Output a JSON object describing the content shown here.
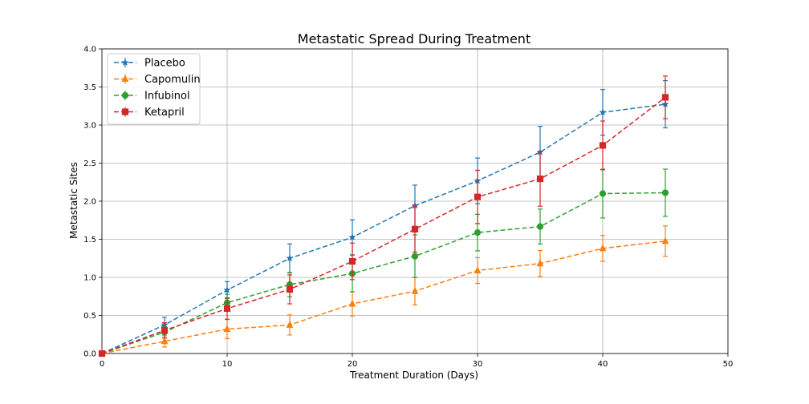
{
  "chart_data": {
    "type": "line",
    "title": "Metastatic Spread During Treatment",
    "xlabel": "Treatment Duration (Days)",
    "ylabel": "Metastatic Sites",
    "xlim": [
      0,
      50
    ],
    "ylim": [
      0,
      4.0
    ],
    "xticks": [
      0,
      10,
      20,
      30,
      40,
      50
    ],
    "yticks": [
      0.0,
      0.5,
      1.0,
      1.5,
      2.0,
      2.5,
      3.0,
      3.5,
      4.0
    ],
    "xtick_labels": [
      "0",
      "10",
      "20",
      "30",
      "40",
      "50"
    ],
    "ytick_labels": [
      "0.0",
      "0.5",
      "1.0",
      "1.5",
      "2.0",
      "2.5",
      "3.0",
      "3.5",
      "4.0"
    ],
    "grid": true,
    "legend_position": "top-left",
    "x": [
      0,
      5,
      10,
      15,
      20,
      25,
      30,
      35,
      40,
      45
    ],
    "series": [
      {
        "name": "Placebo",
        "color": "#1f77b4",
        "marker": "star",
        "line_style": "dashed",
        "values": [
          0.0,
          0.375,
          0.833,
          1.25,
          1.526,
          1.941,
          2.267,
          2.643,
          3.167,
          3.273
        ],
        "errors": [
          0.0,
          0.1,
          0.11,
          0.19,
          0.23,
          0.27,
          0.3,
          0.34,
          0.3,
          0.31
        ]
      },
      {
        "name": "Capomulin",
        "color": "#ff7f0e",
        "marker": "triangle",
        "line_style": "dashed",
        "values": [
          0.0,
          0.16,
          0.32,
          0.375,
          0.652,
          0.818,
          1.09,
          1.182,
          1.38,
          1.476
        ],
        "errors": [
          0.0,
          0.074,
          0.125,
          0.132,
          0.16,
          0.18,
          0.17,
          0.17,
          0.17,
          0.2
        ]
      },
      {
        "name": "Infubinol",
        "color": "#2ca02c",
        "marker": "circle",
        "line_style": "dashed",
        "values": [
          0.0,
          0.28,
          0.667,
          0.905,
          1.05,
          1.278,
          1.588,
          1.667,
          2.1,
          2.111
        ],
        "errors": [
          0.0,
          0.074,
          0.11,
          0.16,
          0.24,
          0.28,
          0.24,
          0.23,
          0.32,
          0.31
        ]
      },
      {
        "name": "Ketapril",
        "color": "#d62728",
        "marker": "square",
        "line_style": "dashed",
        "values": [
          0.0,
          0.304,
          0.59,
          0.842,
          1.21,
          1.632,
          2.056,
          2.294,
          2.733,
          3.364
        ],
        "errors": [
          0.0,
          0.1,
          0.14,
          0.19,
          0.24,
          0.3,
          0.35,
          0.36,
          0.32,
          0.28
        ]
      }
    ]
  }
}
